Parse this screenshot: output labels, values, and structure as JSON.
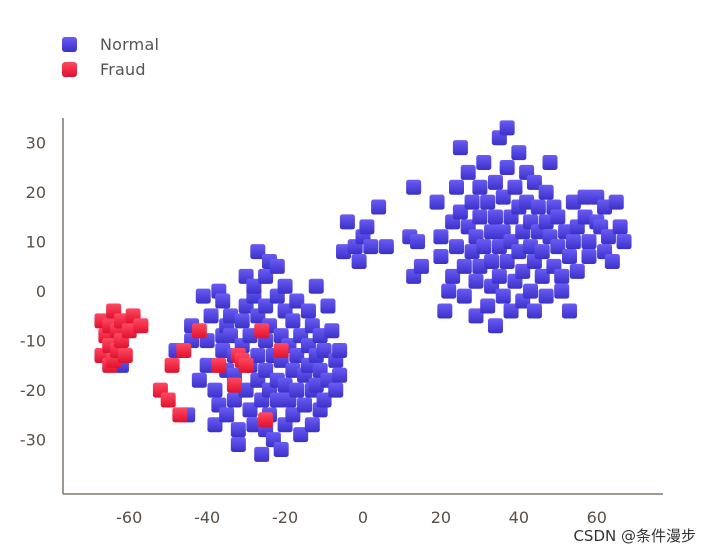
{
  "chart_data": {
    "type": "scatter",
    "title": "",
    "xlabel": "",
    "ylabel": "",
    "xlim": [
      -77,
      77
    ],
    "ylim": [
      -41,
      35
    ],
    "xticks": [
      -60,
      -40,
      -20,
      0,
      20,
      40,
      60
    ],
    "yticks": [
      30,
      20,
      10,
      0,
      -10,
      -20,
      -30
    ],
    "grid": false,
    "legend_position": "top-left",
    "series": [
      {
        "name": "Normal",
        "color": "#4a3fe0",
        "points": [
          [
            -62,
            -15
          ],
          [
            -48,
            -12
          ],
          [
            -45,
            -25
          ],
          [
            -44,
            -7
          ],
          [
            -44,
            -10
          ],
          [
            -42,
            -18
          ],
          [
            -41,
            -1
          ],
          [
            -40,
            -10
          ],
          [
            -40,
            -15
          ],
          [
            -39,
            -5
          ],
          [
            -38,
            -20
          ],
          [
            -38,
            -27
          ],
          [
            -37,
            -23
          ],
          [
            -37,
            0
          ],
          [
            -36,
            -9
          ],
          [
            -36,
            -12
          ],
          [
            -36,
            -2
          ],
          [
            -35,
            -7
          ],
          [
            -35,
            -25
          ],
          [
            -35,
            -16
          ],
          [
            -34,
            -5
          ],
          [
            -34,
            -9
          ],
          [
            -33,
            -13
          ],
          [
            -33,
            -17
          ],
          [
            -33,
            -22
          ],
          [
            -32,
            -31
          ],
          [
            -32,
            -28
          ],
          [
            -31,
            -6
          ],
          [
            -31,
            -11
          ],
          [
            -30,
            3
          ],
          [
            -30,
            -3
          ],
          [
            -30,
            -20
          ],
          [
            -29,
            -15
          ],
          [
            -29,
            -24
          ],
          [
            -29,
            -9
          ],
          [
            -28,
            -1
          ],
          [
            -28,
            -27
          ],
          [
            -28,
            1
          ],
          [
            -27,
            -5
          ],
          [
            -27,
            -13
          ],
          [
            -27,
            -18
          ],
          [
            -27,
            8
          ],
          [
            -26,
            -22
          ],
          [
            -26,
            -33
          ],
          [
            -25,
            -3
          ],
          [
            -25,
            -10
          ],
          [
            -25,
            -16
          ],
          [
            -25,
            -28
          ],
          [
            -25,
            3
          ],
          [
            -24,
            -7
          ],
          [
            -24,
            -20
          ],
          [
            -24,
            -25
          ],
          [
            -24,
            6
          ],
          [
            -23,
            -13
          ],
          [
            -23,
            -30
          ],
          [
            -22,
            -1
          ],
          [
            -22,
            -18
          ],
          [
            -22,
            -22
          ],
          [
            -22,
            5
          ],
          [
            -21,
            -32
          ],
          [
            -21,
            -9
          ],
          [
            -21,
            -14
          ],
          [
            -20,
            -4
          ],
          [
            -20,
            -27
          ],
          [
            -20,
            1
          ],
          [
            -20,
            -19
          ],
          [
            -19,
            -11
          ],
          [
            -19,
            -22
          ],
          [
            -18,
            -25
          ],
          [
            -18,
            -6
          ],
          [
            -18,
            -16
          ],
          [
            -17,
            -2
          ],
          [
            -17,
            -13
          ],
          [
            -17,
            -20
          ],
          [
            -16,
            -29
          ],
          [
            -16,
            -9
          ],
          [
            -15,
            -23
          ],
          [
            -15,
            -17
          ],
          [
            -14,
            -4
          ],
          [
            -14,
            -11
          ],
          [
            -14,
            -15
          ],
          [
            -13,
            -7
          ],
          [
            -13,
            -20
          ],
          [
            -13,
            -27
          ],
          [
            -12,
            1
          ],
          [
            -12,
            -13
          ],
          [
            -12,
            -19
          ],
          [
            -11,
            -9
          ],
          [
            -11,
            -16
          ],
          [
            -11,
            -24
          ],
          [
            -10,
            -22
          ],
          [
            -10,
            -12
          ],
          [
            -9,
            -3
          ],
          [
            -9,
            -18
          ],
          [
            -8,
            -8
          ],
          [
            -7,
            -14
          ],
          [
            -7,
            -20
          ],
          [
            -6,
            -12
          ],
          [
            -6,
            -17
          ],
          [
            -5,
            8
          ],
          [
            -4,
            14
          ],
          [
            -2,
            9
          ],
          [
            -1,
            6
          ],
          [
            0,
            11
          ],
          [
            1,
            13
          ],
          [
            2,
            9
          ],
          [
            4,
            17
          ],
          [
            6,
            9
          ],
          [
            12,
            11
          ],
          [
            13,
            3
          ],
          [
            14,
            10
          ],
          [
            15,
            5
          ],
          [
            13,
            21
          ],
          [
            19,
            18
          ],
          [
            20,
            11
          ],
          [
            20,
            7
          ],
          [
            21,
            -4
          ],
          [
            22,
            0
          ],
          [
            23,
            3
          ],
          [
            23,
            14
          ],
          [
            24,
            21
          ],
          [
            24,
            9
          ],
          [
            25,
            16
          ],
          [
            25,
            29
          ],
          [
            26,
            -1
          ],
          [
            26,
            5
          ],
          [
            27,
            13
          ],
          [
            27,
            24
          ],
          [
            28,
            8
          ],
          [
            28,
            18
          ],
          [
            29,
            2
          ],
          [
            29,
            -5
          ],
          [
            29,
            11
          ],
          [
            30,
            21
          ],
          [
            30,
            15
          ],
          [
            30,
            5
          ],
          [
            31,
            26
          ],
          [
            31,
            9
          ],
          [
            32,
            -3
          ],
          [
            32,
            18
          ],
          [
            33,
            12
          ],
          [
            33,
            1
          ],
          [
            33,
            6
          ],
          [
            34,
            22
          ],
          [
            34,
            15
          ],
          [
            34,
            -7
          ],
          [
            35,
            31
          ],
          [
            35,
            9
          ],
          [
            35,
            3
          ],
          [
            36,
            19
          ],
          [
            36,
            -1
          ],
          [
            36,
            12
          ],
          [
            37,
            25
          ],
          [
            37,
            6
          ],
          [
            37,
            33
          ],
          [
            38,
            15
          ],
          [
            38,
            -4
          ],
          [
            38,
            10
          ],
          [
            39,
            21
          ],
          [
            39,
            2
          ],
          [
            40,
            17
          ],
          [
            40,
            8
          ],
          [
            40,
            28
          ],
          [
            41,
            12
          ],
          [
            41,
            -2
          ],
          [
            41,
            4
          ],
          [
            42,
            24
          ],
          [
            42,
            18
          ],
          [
            43,
            9
          ],
          [
            43,
            14
          ],
          [
            43,
            0
          ],
          [
            44,
            6
          ],
          [
            44,
            -4
          ],
          [
            44,
            22
          ],
          [
            45,
            12
          ],
          [
            45,
            17
          ],
          [
            46,
            3
          ],
          [
            46,
            8
          ],
          [
            47,
            -1
          ],
          [
            47,
            20
          ],
          [
            47,
            14
          ],
          [
            48,
            11
          ],
          [
            48,
            26
          ],
          [
            49,
            5
          ],
          [
            49,
            17
          ],
          [
            50,
            9
          ],
          [
            50,
            15
          ],
          [
            51,
            3
          ],
          [
            51,
            0
          ],
          [
            52,
            12
          ],
          [
            53,
            7
          ],
          [
            53,
            -4
          ],
          [
            54,
            18
          ],
          [
            54,
            10
          ],
          [
            55,
            13
          ],
          [
            55,
            4
          ],
          [
            57,
            15
          ],
          [
            57,
            19
          ],
          [
            58,
            10
          ],
          [
            58,
            7
          ],
          [
            60,
            14
          ],
          [
            60,
            19
          ],
          [
            61,
            13
          ],
          [
            62,
            8
          ],
          [
            62,
            17
          ],
          [
            63,
            11
          ],
          [
            64,
            6
          ],
          [
            65,
            18
          ],
          [
            66,
            13
          ],
          [
            67,
            10
          ]
        ]
      },
      {
        "name": "Fraud",
        "color": "#f01c3c",
        "points": [
          [
            -67,
            -13
          ],
          [
            -67,
            -6
          ],
          [
            -66,
            -9
          ],
          [
            -65,
            -11
          ],
          [
            -65,
            -15
          ],
          [
            -65,
            -7
          ],
          [
            -64,
            -4
          ],
          [
            -64,
            -14
          ],
          [
            -63,
            -8
          ],
          [
            -63,
            -12
          ],
          [
            -62,
            -10
          ],
          [
            -62,
            -6
          ],
          [
            -61,
            -13
          ],
          [
            -60,
            -8
          ],
          [
            -59,
            -5
          ],
          [
            -57,
            -7
          ],
          [
            -52,
            -20
          ],
          [
            -50,
            -22
          ],
          [
            -49,
            -15
          ],
          [
            -47,
            -25
          ],
          [
            -46,
            -12
          ],
          [
            -42,
            -8
          ],
          [
            -37,
            -15
          ],
          [
            -33,
            -19
          ],
          [
            -32,
            -13
          ],
          [
            -31,
            -14
          ],
          [
            -30,
            -15
          ],
          [
            -26,
            -8
          ],
          [
            -25,
            -26
          ],
          [
            -21,
            -12
          ]
        ]
      }
    ],
    "watermark": "CSDN @条件漫步"
  }
}
